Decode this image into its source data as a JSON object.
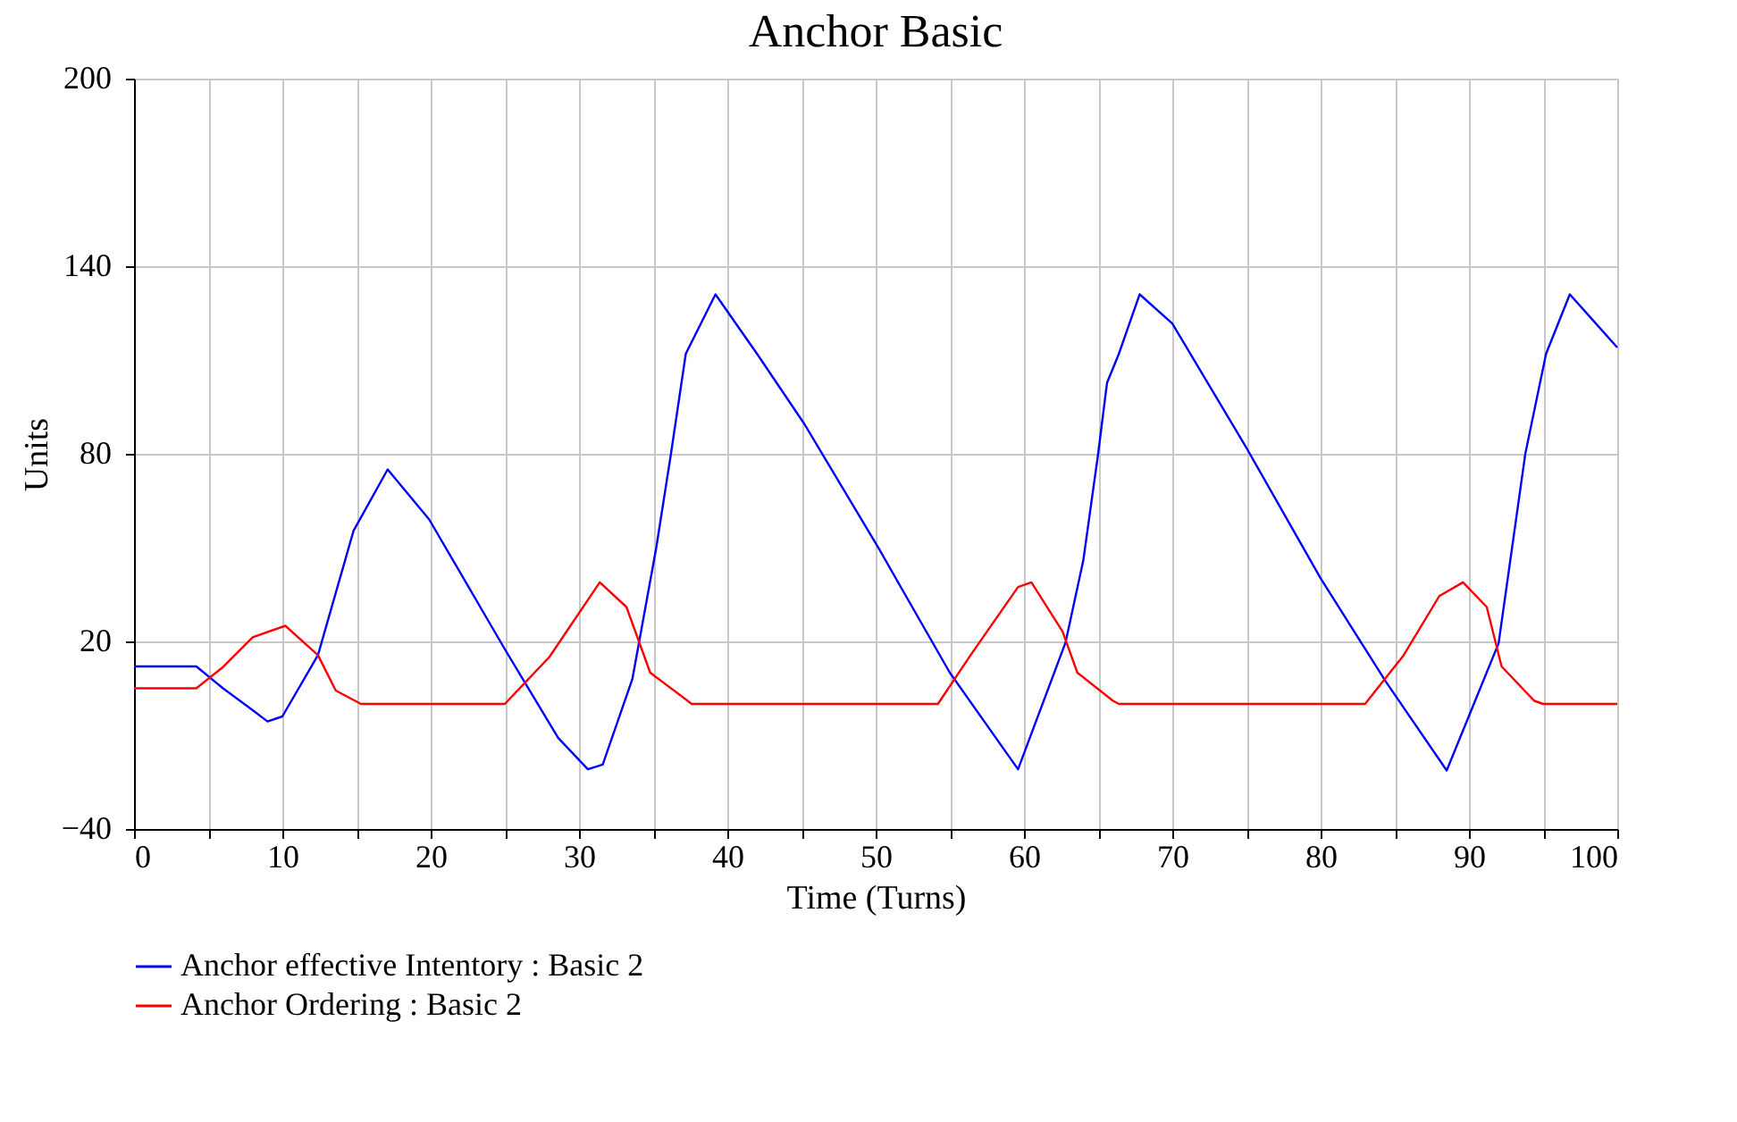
{
  "chart_data": {
    "type": "line",
    "title": "Anchor Basic",
    "xlabel": "Time (Turns)",
    "ylabel": "Units",
    "xlim": [
      0,
      100
    ],
    "ylim": [
      -40,
      200
    ],
    "xticks": [
      0,
      {
        "value": 5,
        "label": null
      },
      10,
      {
        "value": 15,
        "label": null
      },
      20,
      {
        "value": 25,
        "label": null
      },
      30,
      {
        "value": 35,
        "label": null
      },
      40,
      {
        "value": 45,
        "label": null
      },
      50,
      {
        "value": 55,
        "label": null
      },
      60,
      {
        "value": 65,
        "label": null
      },
      70,
      {
        "value": 75,
        "label": null
      },
      80,
      {
        "value": 85,
        "label": null
      },
      90,
      {
        "value": 95,
        "label": null
      },
      100
    ],
    "yticks": [
      -40,
      20,
      80,
      140,
      200
    ],
    "grid": true,
    "legend": "bottom",
    "line_style": "solid",
    "marker": "none",
    "series": [
      {
        "name": "Anchor effective Intentory : Basic 2",
        "color": "#0000ff",
        "x": [
          0,
          4.2,
          6,
          8,
          9,
          10,
          12.4,
          14.8,
          17.1,
          19.9,
          25,
          28.6,
          30.6,
          31.6,
          33.6,
          35.2,
          36.2,
          37.2,
          39.2,
          42,
          45.2,
          50.2,
          55,
          59.6,
          62.8,
          64,
          65,
          65.6,
          66.4,
          67.8,
          70,
          75,
          80,
          84.4,
          88.5,
          92,
          93.8,
          95.2,
          96.8,
          100
        ],
        "values": [
          12,
          12,
          5,
          -2,
          -5.6,
          -4,
          15.6,
          55.4,
          75,
          59,
          17.5,
          -10.9,
          -20.9,
          -19.4,
          8,
          49.7,
          80,
          112,
          131,
          112,
          89.5,
          49.8,
          10,
          -20.9,
          19.6,
          45.9,
          80,
          102.7,
          112,
          131,
          121.7,
          81.9,
          40.2,
          7.1,
          -21.3,
          19.4,
          80,
          112,
          131,
          114
        ]
      },
      {
        "name": "Anchor Ordering : Basic 2",
        "color": "#ff0000",
        "x": [
          0,
          4.2,
          6,
          8,
          10.2,
          12.4,
          13.6,
          15.3,
          25,
          28,
          31.4,
          33.2,
          34.8,
          37.6,
          54.2,
          56.4,
          59.6,
          60.5,
          62.6,
          63.6,
          66,
          66.4,
          83,
          85.6,
          88,
          89.6,
          91.2,
          92.2,
          94.4,
          95,
          100
        ],
        "values": [
          5,
          5,
          11.8,
          21.3,
          25,
          15.6,
          4.3,
          0,
          0,
          15,
          38.9,
          31,
          10,
          0,
          0,
          15.6,
          37.4,
          38.9,
          23.2,
          10,
          1,
          0,
          0,
          15.6,
          34.5,
          38.9,
          31,
          12,
          1,
          0,
          0
        ]
      }
    ]
  }
}
